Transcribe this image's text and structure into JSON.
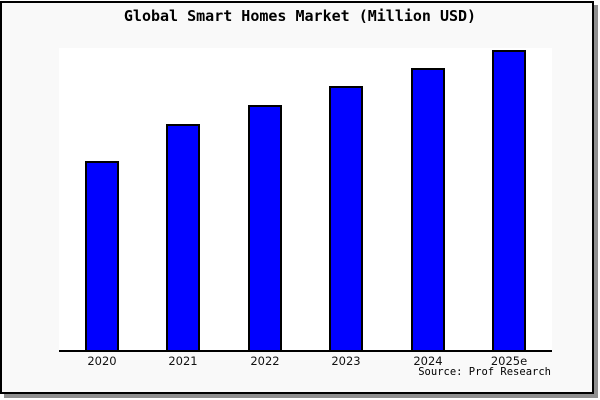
{
  "window": {
    "title": "Global Smart Homes Market (Million USD)",
    "source_note": "Source: Prof Research"
  },
  "colors": {
    "bar_fill": "#0000ff",
    "bar_border": "#000000",
    "frame_background": "#f9f9f9",
    "plot_background": "#ffffff",
    "frame_border": "#000000",
    "frame_shadow": "#8f8f8f",
    "axis_line": "#000000"
  },
  "chart_data": {
    "type": "bar",
    "title": "Global Smart Homes Market (Million USD)",
    "categories": [
      "2020",
      "2021",
      "2022",
      "2023",
      "2024",
      "2025e"
    ],
    "values_relative_pct": [
      62.6,
      74.8,
      81.1,
      87.4,
      93.4,
      99.3
    ],
    "series_name": "Global Smart Homes Market",
    "xlabel": "",
    "ylabel": "",
    "y_axis_tick_labels_visible": false,
    "grid": false,
    "legend_visible": false,
    "bar_color": "#0000ff",
    "source": "Source: Prof Research"
  }
}
